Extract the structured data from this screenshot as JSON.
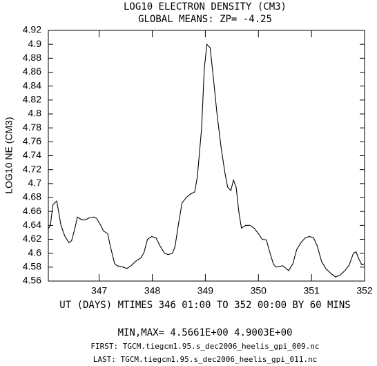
{
  "chart_data": {
    "type": "line",
    "title": "LOG10 ELECTRON DENSITY (CM3)",
    "subtitle": "GLOBAL MEANS: ZP= -4.25",
    "y_label": "LOG10 NE (CM3)",
    "x_label": "UT (DAYS) MTIMES 346 01:00 TO 352 00:00 BY    60 MINS",
    "annotations": [
      "MIN,MAX=  4.5661E+00  4.9003E+00",
      "FIRST: TGCM.tiegcm1.95.s_dec2006_heelis_gpi_009.nc",
      "LAST:  TGCM.tiegcm1.95.s_dec2006_heelis_gpi_011.nc"
    ],
    "xlim": [
      346.0417,
      352
    ],
    "ylim": [
      4.56,
      4.92
    ],
    "xticks": [
      347,
      348,
      349,
      350,
      351,
      352
    ],
    "yticks": [
      4.56,
      4.58,
      4.6,
      4.62,
      4.64,
      4.66,
      4.68,
      4.7,
      4.72,
      4.74,
      4.76,
      4.78,
      4.8,
      4.82,
      4.84,
      4.86,
      4.88,
      4.9,
      4.92
    ],
    "grid": false,
    "color": "#000000",
    "x": [
      346.04,
      346.08,
      346.13,
      346.2,
      346.28,
      346.35,
      346.43,
      346.48,
      346.54,
      346.59,
      346.67,
      346.74,
      346.82,
      346.9,
      346.95,
      347.03,
      347.08,
      347.16,
      347.21,
      347.29,
      347.34,
      347.45,
      347.52,
      347.6,
      347.68,
      347.78,
      347.84,
      347.91,
      347.99,
      348.07,
      348.15,
      348.23,
      348.3,
      348.38,
      348.43,
      348.49,
      348.56,
      348.64,
      348.72,
      348.8,
      348.85,
      348.93,
      348.98,
      349.03,
      349.09,
      349.14,
      349.22,
      349.3,
      349.37,
      349.42,
      349.48,
      349.53,
      349.58,
      349.63,
      349.68,
      349.76,
      349.84,
      349.92,
      350.0,
      350.07,
      350.15,
      350.2,
      350.28,
      350.33,
      350.46,
      350.57,
      350.65,
      350.72,
      350.8,
      350.88,
      350.96,
      351.04,
      351.11,
      351.19,
      351.27,
      351.35,
      351.45,
      351.53,
      351.63,
      351.71,
      351.79,
      351.84,
      351.89,
      351.95,
      352.0
    ],
    "values": [
      4.635,
      4.64,
      4.67,
      4.675,
      4.64,
      4.625,
      4.615,
      4.618,
      4.635,
      4.652,
      4.648,
      4.648,
      4.651,
      4.652,
      4.65,
      4.64,
      4.632,
      4.628,
      4.61,
      4.585,
      4.582,
      4.58,
      4.578,
      4.582,
      4.588,
      4.593,
      4.6,
      4.62,
      4.624,
      4.622,
      4.61,
      4.6,
      4.598,
      4.6,
      4.61,
      4.64,
      4.672,
      4.68,
      4.685,
      4.688,
      4.71,
      4.78,
      4.865,
      4.9,
      4.895,
      4.86,
      4.8,
      4.75,
      4.715,
      4.695,
      4.69,
      4.705,
      4.695,
      4.66,
      4.636,
      4.64,
      4.64,
      4.636,
      4.628,
      4.62,
      4.619,
      4.605,
      4.585,
      4.58,
      4.582,
      4.575,
      4.585,
      4.605,
      4.615,
      4.622,
      4.624,
      4.622,
      4.61,
      4.588,
      4.578,
      4.572,
      4.566,
      4.568,
      4.575,
      4.583,
      4.6,
      4.602,
      4.592,
      4.583,
      4.585
    ]
  }
}
